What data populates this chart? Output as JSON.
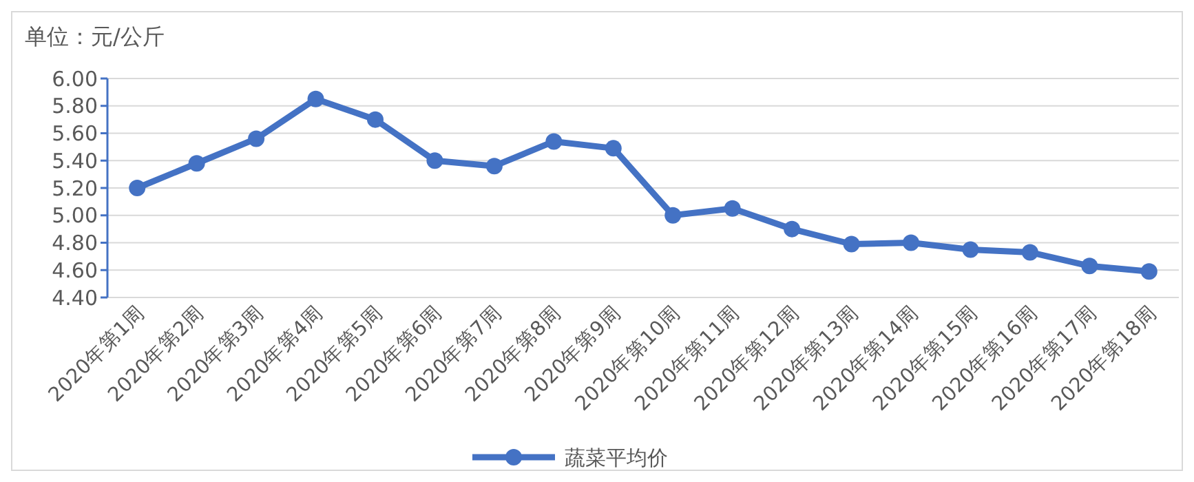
{
  "chart_data": {
    "type": "line",
    "ylabel": "单位：元/公斤",
    "categories": [
      "2020年第1周",
      "2020年第2周",
      "2020年第3周",
      "2020年第4周",
      "2020年第5周",
      "2020年第6周",
      "2020年第7周",
      "2020年第8周",
      "2020年第9周",
      "2020年第10周",
      "2020年第11周",
      "2020年第12周",
      "2020年第13周",
      "2020年第14周",
      "2020年第15周",
      "2020年第16周",
      "2020年第17周",
      "2020年第18周"
    ],
    "series": [
      {
        "name": "蔬菜平均价",
        "color": "#4472c4",
        "values": [
          5.2,
          5.38,
          5.56,
          5.85,
          5.7,
          5.4,
          5.36,
          5.54,
          5.49,
          5.0,
          5.05,
          4.9,
          4.79,
          4.8,
          4.75,
          4.73,
          4.63,
          4.59
        ]
      }
    ],
    "ylim": [
      4.4,
      6.0
    ],
    "yticks": [
      {
        "value": 4.4,
        "label": "4.40"
      },
      {
        "value": 4.6,
        "label": "4.60"
      },
      {
        "value": 4.8,
        "label": "4.80"
      },
      {
        "value": 5.0,
        "label": "5.00"
      },
      {
        "value": 5.2,
        "label": "5.20"
      },
      {
        "value": 5.4,
        "label": "5.40"
      },
      {
        "value": 5.6,
        "label": "5.60"
      },
      {
        "value": 5.8,
        "label": "5.80"
      },
      {
        "value": 6.0,
        "label": "6.00"
      }
    ],
    "grid": "y",
    "legend": "bottom",
    "marker": "circle",
    "line_style": "solid"
  }
}
